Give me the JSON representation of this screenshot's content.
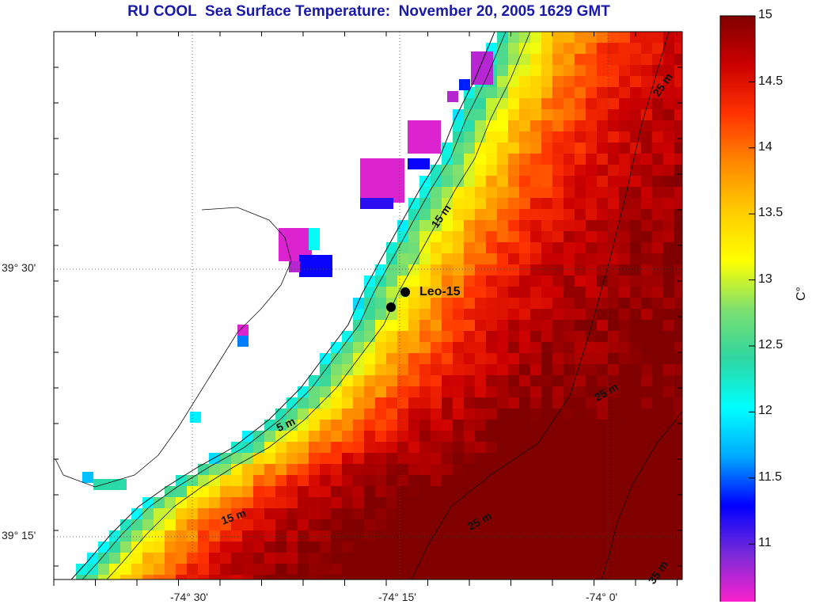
{
  "title": "RU COOL  Sea Surface Temperature:  November 20, 2005 1629 GMT",
  "lat_labels": [
    "39° 30'",
    "39° 15'"
  ],
  "lon_labels": [
    "-74° 30'",
    "-74° 15'",
    "-74° 0'"
  ],
  "colorbar": {
    "ticks": [
      "15",
      "14.5",
      "14",
      "13.5",
      "13",
      "12.5",
      "12",
      "11.5",
      "11"
    ],
    "unit": "C°",
    "min": 10.6,
    "max": 15,
    "colors": [
      "#ff22cc",
      "#7a2ad8",
      "#0000ff",
      "#00aaff",
      "#00ffff",
      "#2ed6a0",
      "#7ee070",
      "#ffff00",
      "#ffcc00",
      "#ff8800",
      "#ff3300",
      "#cc0000",
      "#800000"
    ]
  },
  "contour_labels": [
    "15 m",
    "25 m",
    "25 m",
    "25 m",
    "35 m",
    "5 m",
    "15 m"
  ],
  "station": {
    "name": "Leo-15"
  }
}
